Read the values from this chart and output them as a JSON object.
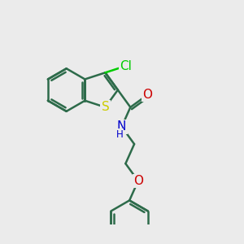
{
  "background_color": "#ebebeb",
  "bond_color": "#2d6b4a",
  "bond_width": 1.8,
  "atom_colors": {
    "Cl": "#00cc00",
    "S": "#cccc00",
    "N": "#0000cc",
    "O": "#cc0000",
    "C": "#2d6b4a",
    "H": "#2d6b4a"
  },
  "font_size": 9.5,
  "figsize": [
    3.0,
    3.0
  ],
  "dpi": 100,
  "xlim": [
    -2.8,
    2.8
  ],
  "ylim": [
    -3.0,
    1.8
  ]
}
